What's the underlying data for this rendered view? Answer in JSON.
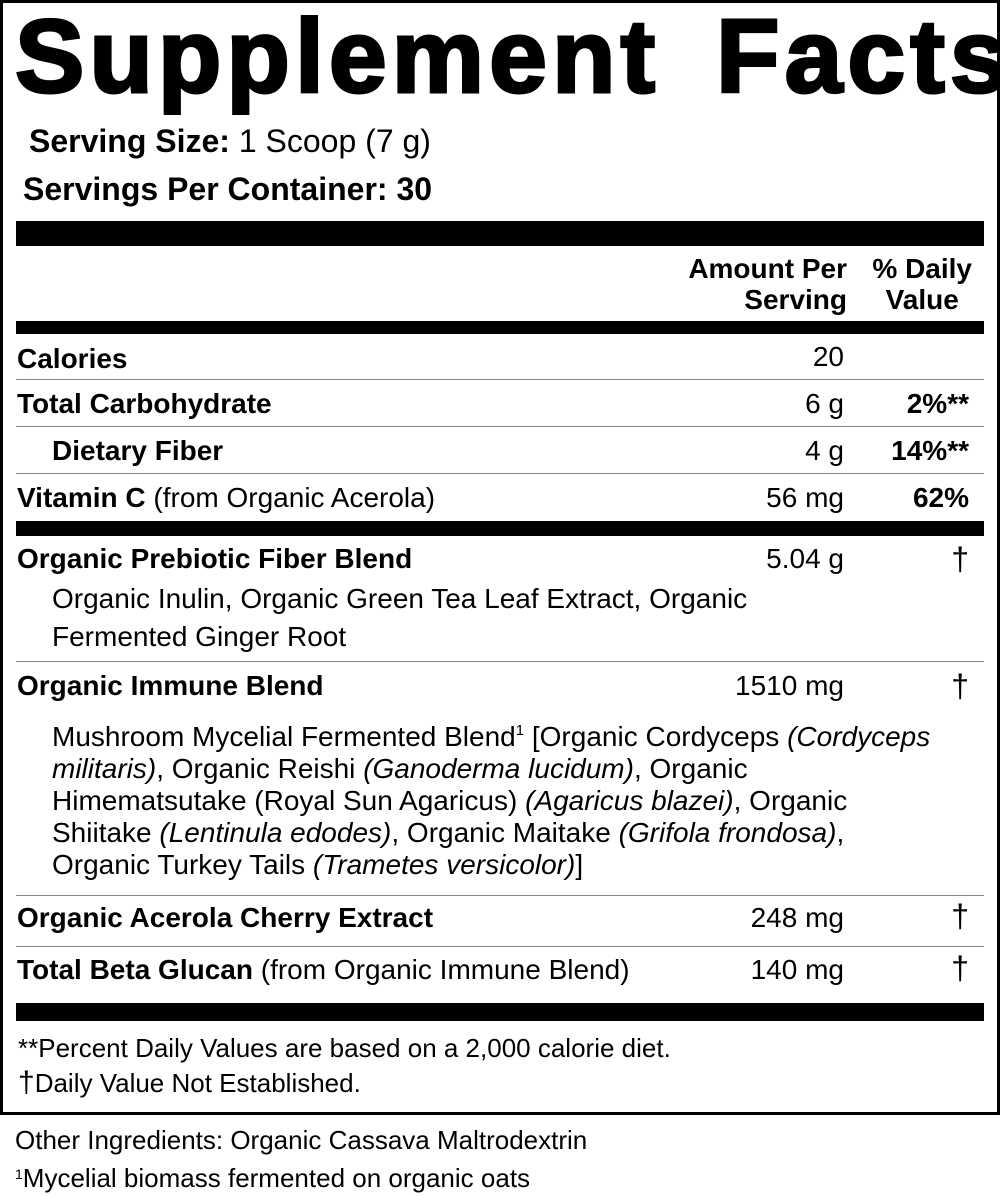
{
  "title": "Supplement Facts",
  "serving": {
    "size_label": "Serving Size:",
    "size_value": "1 Scoop (7 g)",
    "per_container_label": "Servings Per Container:",
    "per_container_value": "30"
  },
  "header": {
    "amount_line1": "Amount Per",
    "amount_line2": "Serving",
    "dv_line1": "% Daily",
    "dv_line2": "Value"
  },
  "rows": [
    {
      "name": "Calories",
      "amount": "20",
      "dv": ""
    },
    {
      "name": "Total Carbohydrate",
      "amount": "6 g",
      "dv": "2%**"
    },
    {
      "name": "Dietary Fiber",
      "amount": "4 g",
      "dv": "14%**"
    },
    {
      "name": "Vitamin C",
      "note": "(from Organic Acerola)",
      "amount": "56 mg",
      "dv": "62%"
    }
  ],
  "blends": [
    {
      "name": "Organic Prebiotic Fiber Blend",
      "amount": "5.04 g",
      "dv": "†",
      "ingredients": "Organic Inulin, Organic Green Tea Leaf Extract, Organic Fermented Ginger Root"
    },
    {
      "name": "Organic Immune Blend",
      "amount": "1510 mg",
      "dv": "†",
      "sub_blend": "Mushroom Mycelial Fermented Blend",
      "sup": "1",
      "parts": [
        {
          "t": " [Organic Cordyceps "
        },
        {
          "i": "(Cordyceps militaris)"
        },
        {
          "t": ", Organic Reishi "
        },
        {
          "i": "(Ganoderma lucidum)"
        },
        {
          "t": ", Organic Himematsutake (Royal Sun Agaricus) "
        },
        {
          "i": "(Agaricus blazei)"
        },
        {
          "t": ", Organic Shiitake "
        },
        {
          "i": "(Lentinula edodes)"
        },
        {
          "t": ", Organic Maitake "
        },
        {
          "i": "(Grifola frondosa)"
        },
        {
          "t": ", Organic Turkey Tails "
        },
        {
          "i": "(Trametes versicolor)"
        },
        {
          "t": "]"
        }
      ]
    },
    {
      "name": "Organic Acerola Cherry Extract",
      "amount": "248 mg",
      "dv": "†"
    },
    {
      "name": "Total Beta Glucan",
      "note": "(from Organic Immune Blend)",
      "amount": "140 mg",
      "dv": "†"
    }
  ],
  "footnotes": {
    "percent": "**Percent Daily Values are based on a 2,000 calorie diet.",
    "dagger_symbol": "†",
    "dagger_text": "Daily Value Not Established."
  },
  "other_ingredients": "Other Ingredients: Organic Cassava Maltrodextrin",
  "footnote1": {
    "sup": "1",
    "text": "Mycelial biomass fermented on organic oats"
  }
}
